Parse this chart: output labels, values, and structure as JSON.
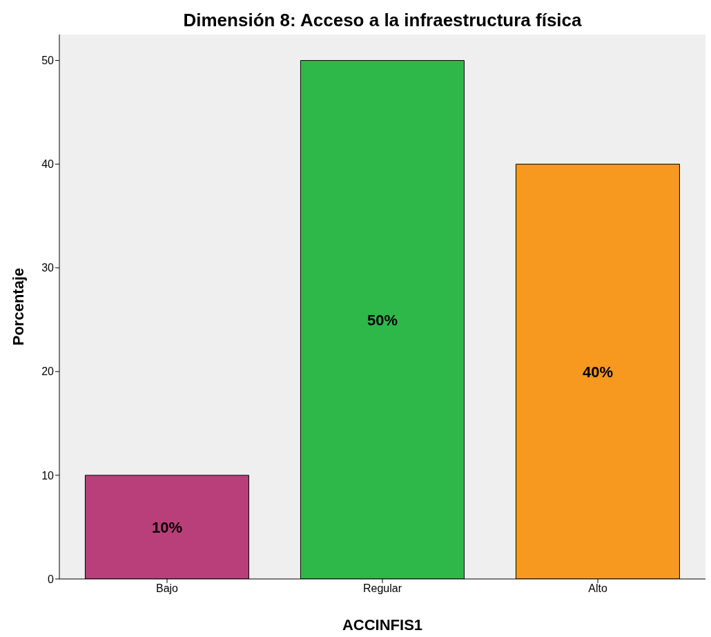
{
  "chart_data": {
    "type": "bar",
    "title": "Dimensión 8: Acceso a la infraestructura física",
    "xlabel": "ACCINFIS1",
    "ylabel": "Porcentaje",
    "categories": [
      "Bajo",
      "Regular",
      "Alto"
    ],
    "values": [
      10,
      50,
      40
    ],
    "colors": [
      "#b83f7a",
      "#2fb84a",
      "#f7981f"
    ],
    "value_labels": [
      "10%",
      "50%",
      "40%"
    ],
    "ylim": [
      0,
      52.5
    ],
    "yticks": [
      0,
      10,
      20,
      30,
      40,
      50
    ],
    "grid": false,
    "legend": false
  }
}
